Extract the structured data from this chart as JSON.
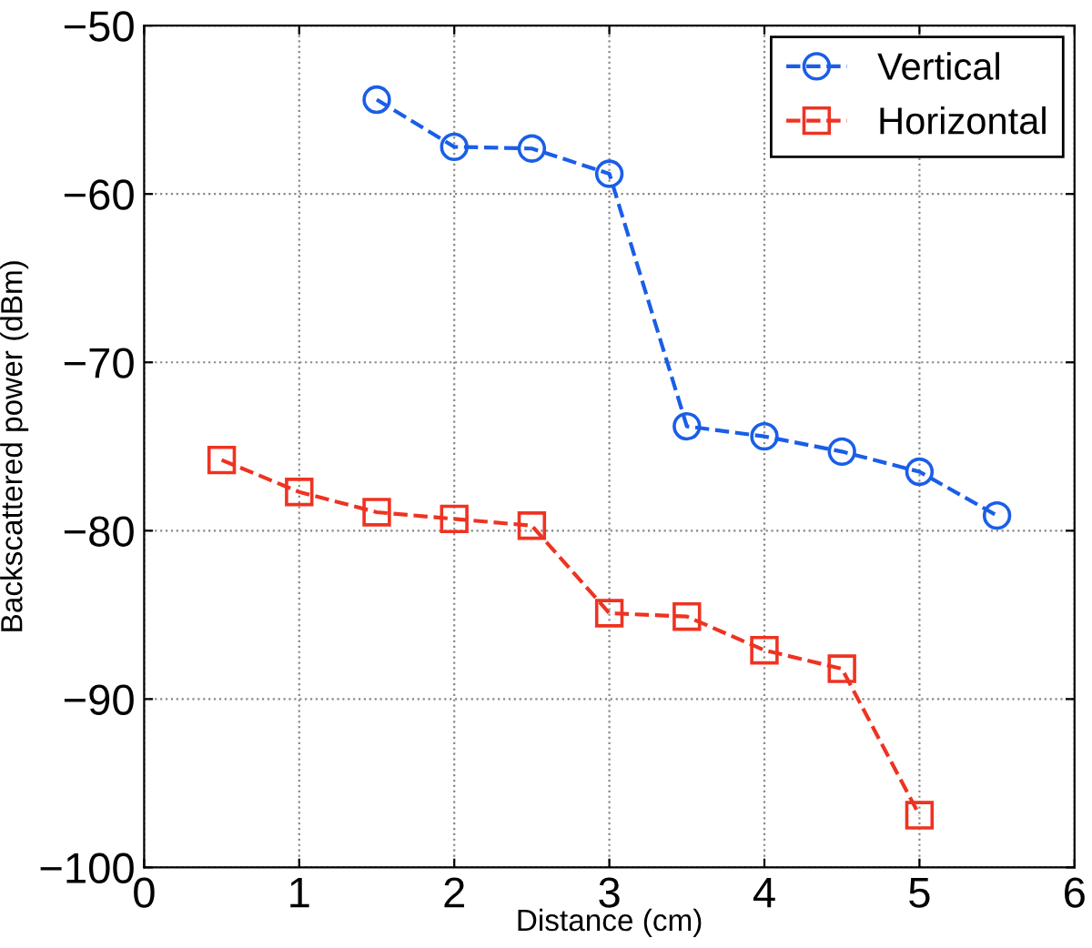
{
  "chart_data": {
    "type": "line",
    "xlabel": "Distance (cm)",
    "ylabel": "Backscattered power (dBm)",
    "xlim": [
      0,
      6
    ],
    "xticks": [
      0,
      1,
      2,
      3,
      4,
      5,
      6
    ],
    "ylim": [
      -100,
      -50
    ],
    "yticks": [
      -100,
      -90,
      -80,
      -70,
      -60,
      -50
    ],
    "grid": true,
    "legend": "top right",
    "line_style": "dashed",
    "series": [
      {
        "name": "Vertical",
        "color": "#1a5ee8",
        "marker": "circle",
        "x": [
          1.5,
          2,
          2.5,
          3,
          3.5,
          4,
          4.5,
          5,
          5.5
        ],
        "values": [
          -54.4,
          -57.2,
          -57.3,
          -58.8,
          -73.8,
          -74.4,
          -75.3,
          -76.5,
          -79.1
        ]
      },
      {
        "name": "Horizontal",
        "color": "#ee3322",
        "marker": "square",
        "x": [
          0.5,
          1,
          1.5,
          2,
          2.5,
          3,
          3.5,
          4,
          4.5,
          5
        ],
        "values": [
          -75.8,
          -77.7,
          -78.9,
          -79.3,
          -79.7,
          -84.9,
          -85.1,
          -87.1,
          -88.2,
          -96.9
        ]
      }
    ]
  }
}
